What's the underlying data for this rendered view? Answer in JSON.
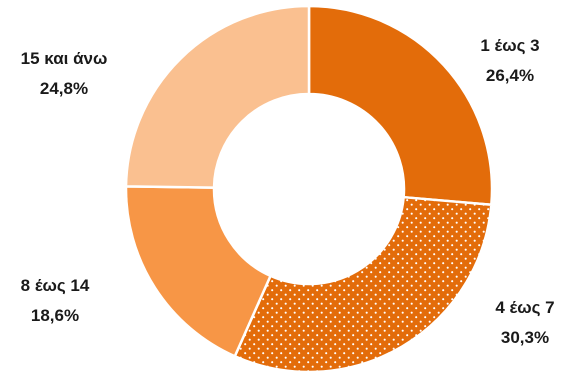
{
  "chart_data": {
    "type": "pie",
    "categories": [
      "1 έως 3",
      "4 έως 7",
      "8 έως 14",
      "15 και άνω"
    ],
    "values": [
      26.4,
      30.3,
      18.6,
      24.8
    ],
    "value_labels": [
      "26,4%",
      "30,3%",
      "18,6%",
      "24,8%"
    ],
    "colors": [
      "#e36c0a",
      "#e36c0a",
      "#f79646",
      "#fac090"
    ],
    "pattern": [
      "none",
      "dotted",
      "none",
      "none"
    ],
    "donut": true,
    "title": "",
    "legend": "none"
  }
}
